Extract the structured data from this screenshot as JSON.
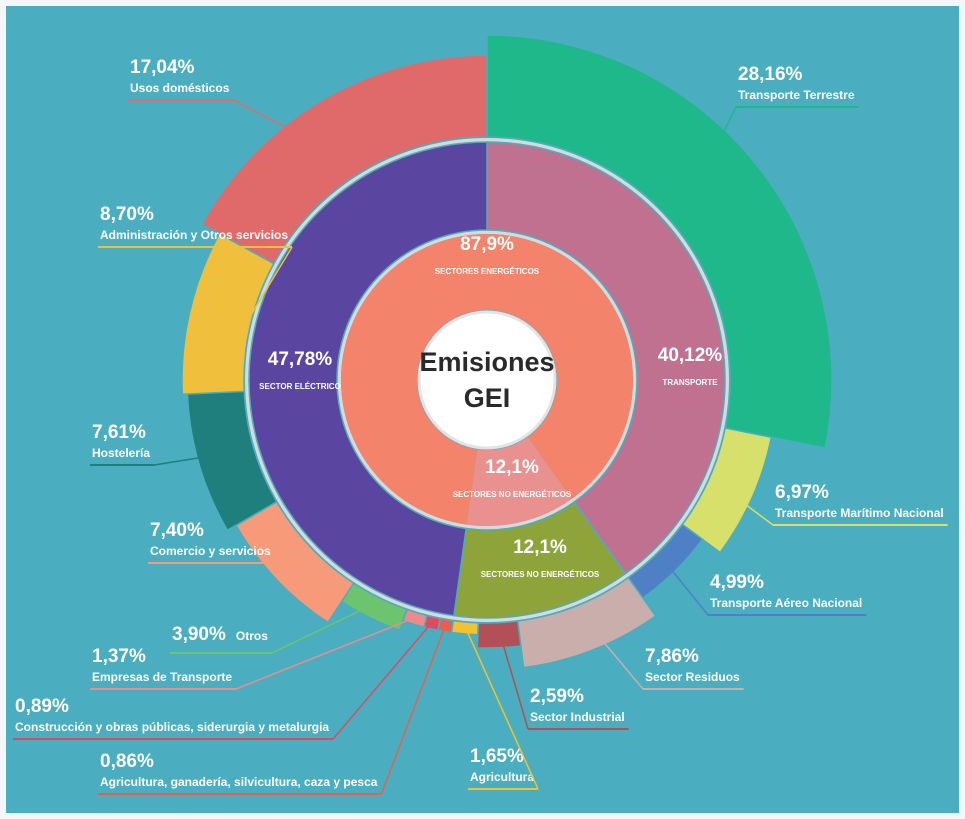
{
  "chart_data": {
    "type": "sunburst",
    "title": "Emisiones GEI",
    "inner": {
      "categories": [
        "SECTORES ENERGÉTICOS",
        "SECTORES NO ENERGÉTICOS"
      ],
      "values": [
        87.9,
        12.1
      ],
      "value_labels": [
        "87,9%",
        "12,1%"
      ],
      "colors": [
        "#f4836b",
        "#e8918e"
      ]
    },
    "middle": {
      "categories": [
        "TRANSPORTE",
        "SECTORES NO ENERGÉTICOS",
        "SECTOR ELÉCTRICO"
      ],
      "values": [
        40.12,
        12.1,
        47.78
      ],
      "value_labels": [
        "40,12%",
        "12,1%",
        "47,78%"
      ],
      "colors": [
        "#c0718f",
        "#8ea43a",
        "#5a46a0"
      ]
    },
    "outer": {
      "categories": [
        "Transporte Terrestre",
        "Transporte Marítimo Nacional",
        "Transporte Aéreo Nacional",
        "Sector Residuos",
        "Sector Industrial",
        "Agricultura",
        "Agricultura, ganadería, silvicultura, caza y pesca",
        "Construcción y obras públicas, siderurgia y metalurgia",
        "Empresas de Transporte",
        "Otros",
        "Comercio y servicios",
        "Hostelería",
        "Administración y Otros servicios",
        "Usos domésticos"
      ],
      "values": [
        28.16,
        6.97,
        4.99,
        7.86,
        2.59,
        1.65,
        0.86,
        0.89,
        1.37,
        3.9,
        7.4,
        7.61,
        8.7,
        17.04
      ],
      "value_labels": [
        "28,16%",
        "6,97%",
        "4,99%",
        "7,86%",
        "2,59%",
        "1,65%",
        "0,86%",
        "0,89%",
        "1,37%",
        "3,90%",
        "7,40%",
        "7,61%",
        "8,70%",
        "17,04%"
      ],
      "colors": [
        "#1fb88a",
        "#d6e06a",
        "#4f7fc4",
        "#c9aeab",
        "#b24f57",
        "#f2c230",
        "#e5604f",
        "#e0495e",
        "#f08a8a",
        "#6cc46e",
        "#f79a7a",
        "#1f7f7c",
        "#f0c03c",
        "#e06a6a"
      ]
    }
  }
}
